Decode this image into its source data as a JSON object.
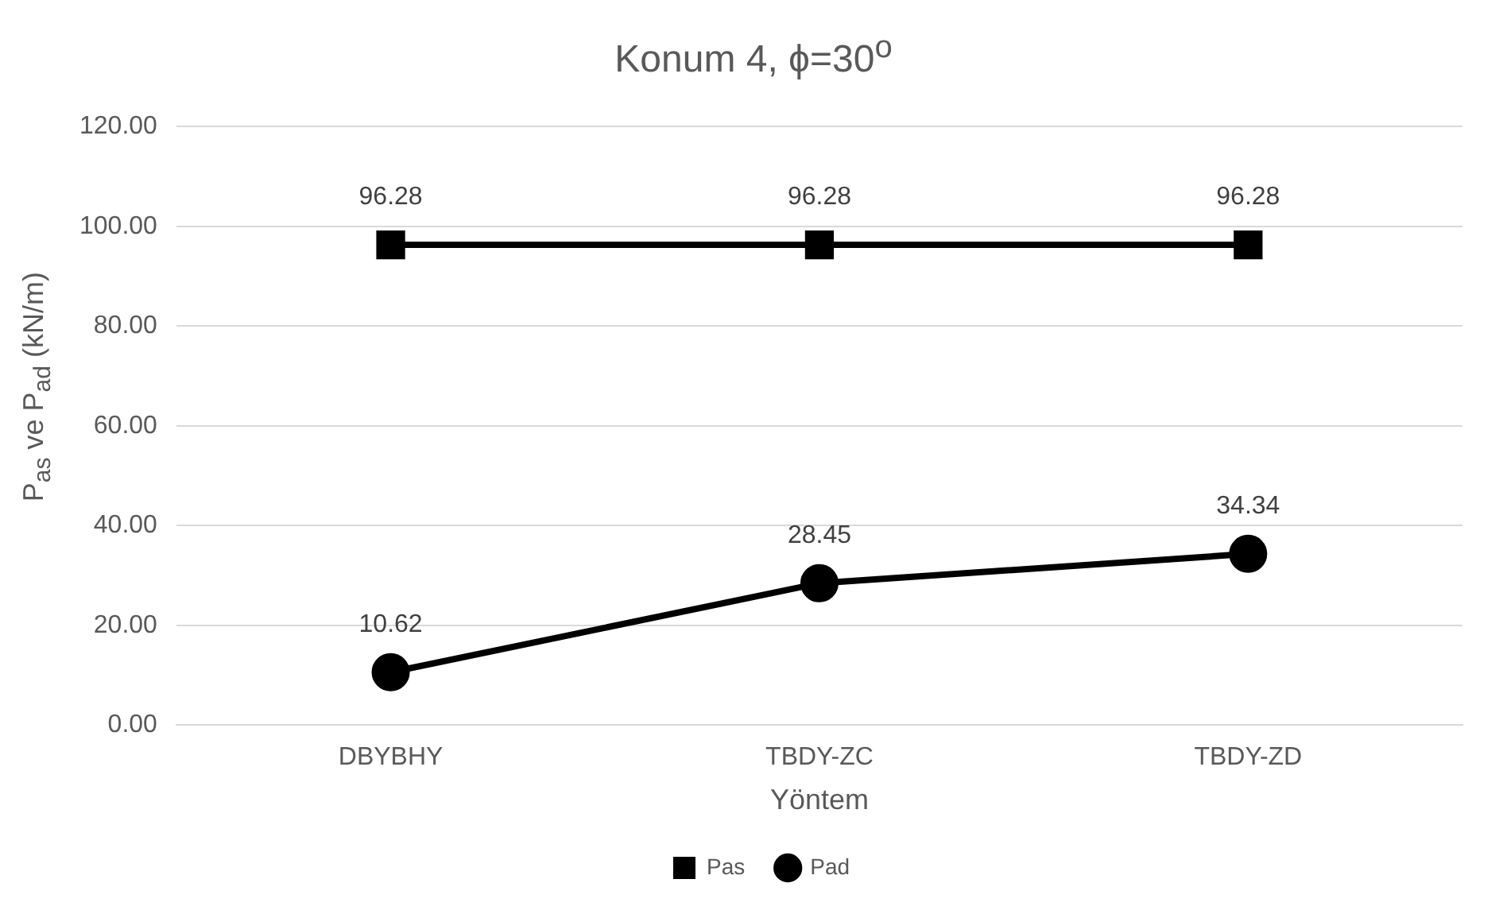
{
  "chart_data": {
    "type": "line",
    "title": "Konum 4, ϕ=30$^{o}$",
    "xlabel": "Yöntem",
    "ylabel": "P$_{as}$ ve P$_{ad}$ (kN/m)",
    "categories": [
      "DBYBHY",
      "TBDY-ZC",
      "TBDY-ZD"
    ],
    "series": [
      {
        "name": "Pas",
        "color": "#000000",
        "values": [
          96.28,
          96.28,
          96.28
        ],
        "marker": "square"
      },
      {
        "name": "Pad",
        "color": "#000000",
        "values": [
          10.62,
          28.45,
          34.34
        ],
        "marker": "circle"
      }
    ],
    "ylim": [
      0,
      120
    ],
    "yticks": [
      {
        "value": 0,
        "label": "0.00"
      },
      {
        "value": 20,
        "label": "20.00"
      },
      {
        "value": 40,
        "label": "40.00"
      },
      {
        "value": 60,
        "label": "60.00"
      },
      {
        "value": 80,
        "label": "80.00"
      },
      {
        "value": 100,
        "label": "100.00"
      },
      {
        "value": 120,
        "label": "120.00"
      }
    ],
    "grid": "y",
    "legend": "bottom",
    "data_labels": true,
    "line_style": "solid"
  }
}
